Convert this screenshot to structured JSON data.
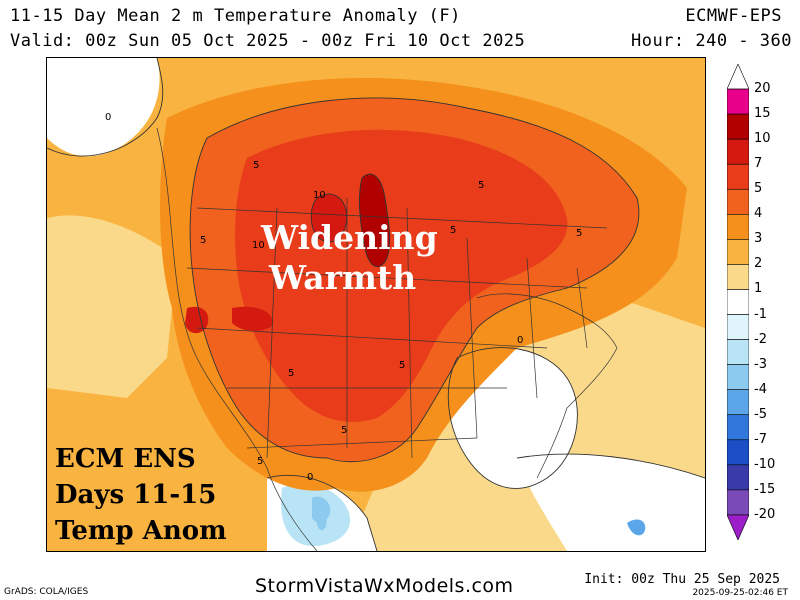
{
  "header": {
    "title": "11-15 Day Mean 2 m Temperature Anomaly (F)",
    "valid": "Valid: 00z Sun 05 Oct 2025 - 00z Fri 10 Oct 2025",
    "model": "ECMWF-EPS",
    "hour": "Hour: 240 - 360"
  },
  "overlay": {
    "headline_line1": "Widening",
    "headline_line2": "Warmth",
    "caption_line1": "ECM ENS",
    "caption_line2": "Days 11-15",
    "caption_line3": "Temp Anom"
  },
  "contour_labels": [
    {
      "id": "c0-1",
      "text": "0"
    },
    {
      "id": "c0-2",
      "text": "0"
    },
    {
      "id": "c0-3",
      "text": "0"
    },
    {
      "id": "c5-1",
      "text": "5"
    },
    {
      "id": "c5-2",
      "text": "5"
    },
    {
      "id": "c5-3",
      "text": "5"
    },
    {
      "id": "c5-4",
      "text": "5"
    },
    {
      "id": "c5-5",
      "text": "5"
    },
    {
      "id": "c5-6",
      "text": "5"
    },
    {
      "id": "c5-7",
      "text": "5"
    },
    {
      "id": "c5-8",
      "text": "5"
    },
    {
      "id": "c5-9",
      "text": "5"
    },
    {
      "id": "c10-1",
      "text": "10"
    },
    {
      "id": "c10-2",
      "text": "10"
    }
  ],
  "legend": {
    "labels": [
      "20",
      "15",
      "10",
      "7",
      "5",
      "4",
      "3",
      "2",
      "1",
      "-1",
      "-2",
      "-3",
      "-4",
      "-5",
      "-7",
      "-10",
      "-15",
      "-20"
    ],
    "colors": [
      "#e8008a",
      "#b00000",
      "#d41a10",
      "#e83c1a",
      "#f0621e",
      "#f5901c",
      "#f9b340",
      "#fbd98a",
      "#ffffff",
      "#dff5fb",
      "#b8e4f5",
      "#8ccaf0",
      "#5aa6e8",
      "#3278dc",
      "#1c4ec8",
      "#3a3aa8",
      "#7a4ab8",
      "#9b1ec8"
    ]
  },
  "footer": {
    "credit": "GrADS: COLA/IGES",
    "site": "StormVistaWxModels.com",
    "init": "Init: 00z Thu 25 Sep 2025",
    "generated": "2025-09-25-02:46 ET"
  }
}
